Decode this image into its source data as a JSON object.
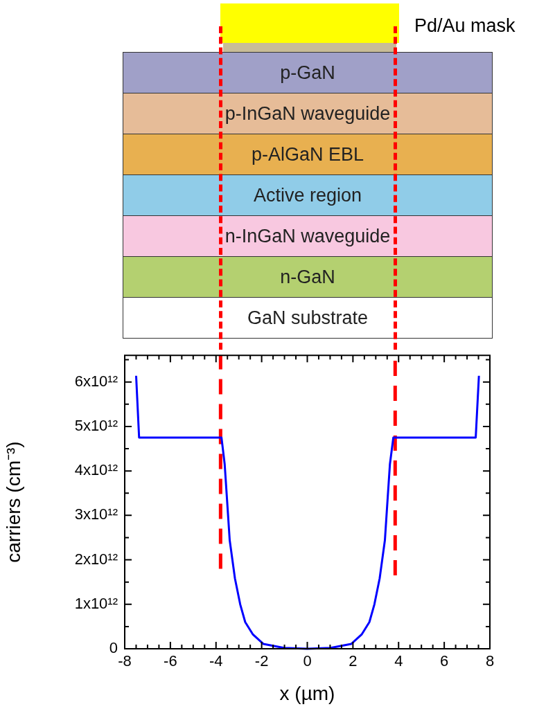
{
  "chart_data": {
    "type": "line",
    "xlabel": "x (µm)",
    "ylabel": "carriers (cm⁻³)",
    "annotations": [
      "Pd/Au mask",
      "p-GaN",
      "p-InGaN waveguide",
      "p-AlGaN EBL",
      "Active region",
      "n-InGaN waveguide",
      "n-GaN",
      "GaN substrate"
    ],
    "xlim": [
      -8,
      8
    ],
    "xticks": [
      -8,
      -6,
      -4,
      -2,
      0,
      2,
      4,
      6,
      8
    ],
    "ylim": [
      0,
      6600000000000.0
    ],
    "yticks": [
      0,
      {
        "value": 1000000000000.0,
        "label": "1x10¹²"
      },
      {
        "value": 2000000000000.0,
        "label": "2x10¹²"
      },
      {
        "value": 3000000000000.0,
        "label": "3x10¹²"
      },
      {
        "value": 4000000000000.0,
        "label": "4x10¹²"
      },
      {
        "value": 5000000000000.0,
        "label": "5x10¹²"
      },
      {
        "value": 6000000000000.0,
        "label": "6x10¹²"
      }
    ],
    "grid": false,
    "legend": false,
    "marker": "none",
    "series": [
      {
        "color": "#0000ff",
        "line_style": "solid",
        "x": [
          -7.5,
          -7.37,
          -3.76,
          -3.62,
          -3.51,
          -3.4,
          -3.17,
          -2.94,
          -2.72,
          -2.38,
          -1.93,
          -1.02,
          0,
          1.02,
          1.93,
          2.38,
          2.72,
          2.94,
          3.17,
          3.4,
          3.51,
          3.62,
          3.77,
          7.38,
          7.52
        ],
        "values": [
          6140000000000.0,
          4750000000000.0,
          4750000000000.0,
          4150000000000.0,
          3300000000000.0,
          2440000000000.0,
          1580000000000.0,
          1000000000000.0,
          600000000000.0,
          320000000000.0,
          110000000000.0,
          20000000000.0,
          0,
          20000000000.0,
          110000000000.0,
          320000000000.0,
          600000000000.0,
          1000000000000.0,
          1580000000000.0,
          2440000000000.0,
          3300000000000.0,
          4150000000000.0,
          4750000000000.0,
          4750000000000.0,
          6140000000000.0
        ]
      },
      {
        "type": "line",
        "color": "#ff0000",
        "line_style": "dashed",
        "x": [
          -3.8,
          -3.8
        ],
        "values": [
          1800000000000.0,
          6600000000000.0
        ]
      },
      {
        "type": "line",
        "color": "#ff0000",
        "line_style": "dashed",
        "x": [
          3.85,
          3.85
        ],
        "values": [
          1650000000000.0,
          6600000000000.0
        ]
      }
    ]
  }
}
